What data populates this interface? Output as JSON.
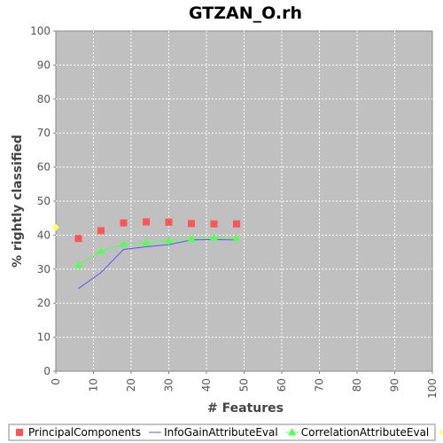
{
  "chart_data": {
    "type": "line",
    "title": "GTZAN_O.rh",
    "xlabel": "# Features",
    "ylabel": "% rightly classified",
    "xlim": [
      0,
      100
    ],
    "ylim": [
      0,
      100
    ],
    "x_ticks": [
      0,
      10,
      20,
      30,
      40,
      50,
      60,
      70,
      80,
      90,
      100
    ],
    "y_ticks": [
      0,
      10,
      20,
      30,
      40,
      50,
      60,
      70,
      80,
      90,
      100
    ],
    "grid": true,
    "legend_position": "bottom",
    "plot_background": "#c0c0c0",
    "series": [
      {
        "name": "PrincipalComponents",
        "color": "#ff5555",
        "marker": "square",
        "line": false,
        "x": [
          6,
          12,
          18,
          24,
          30,
          36,
          42,
          48
        ],
        "y": [
          39.0,
          41.3,
          43.6,
          43.9,
          43.8,
          43.4,
          43.3,
          43.3
        ]
      },
      {
        "name": "InfoGainAttributeEval",
        "color": "#5555ff",
        "marker": "none",
        "line": true,
        "x": [
          6,
          12,
          18,
          24,
          30,
          36,
          42,
          48
        ],
        "y": [
          24.3,
          29.0,
          35.8,
          36.6,
          37.2,
          38.6,
          38.7,
          38.6
        ]
      },
      {
        "name": "CorrelationAttributeEval",
        "color": "#55ff55",
        "marker": "triangle",
        "line": true,
        "x": [
          6,
          12,
          18,
          24,
          30,
          36,
          42,
          48
        ],
        "y": [
          31.2,
          35.3,
          37.4,
          37.8,
          38.4,
          38.9,
          39.3,
          39.1
        ]
      },
      {
        "name": "None",
        "color": "#ffff55",
        "marker": "diamond",
        "line": false,
        "x": [
          0
        ],
        "y": [
          42.3
        ]
      }
    ]
  }
}
